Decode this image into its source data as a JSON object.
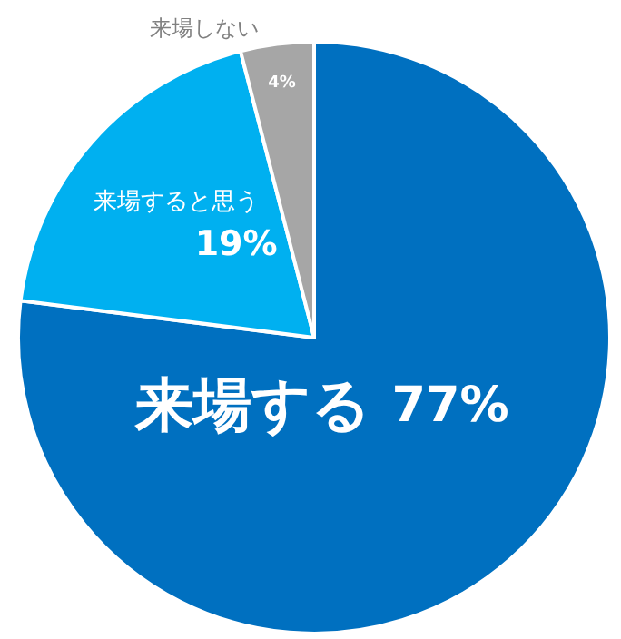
{
  "chart_data": {
    "type": "pie",
    "categories": [
      "来場する",
      "来場すると思う",
      "来場しない"
    ],
    "values": [
      77,
      19,
      4
    ],
    "colors": [
      "#0070c0",
      "#00b0f0",
      "#a6a6a6"
    ],
    "value_labels": [
      "77%",
      "19%",
      "4%"
    ]
  }
}
